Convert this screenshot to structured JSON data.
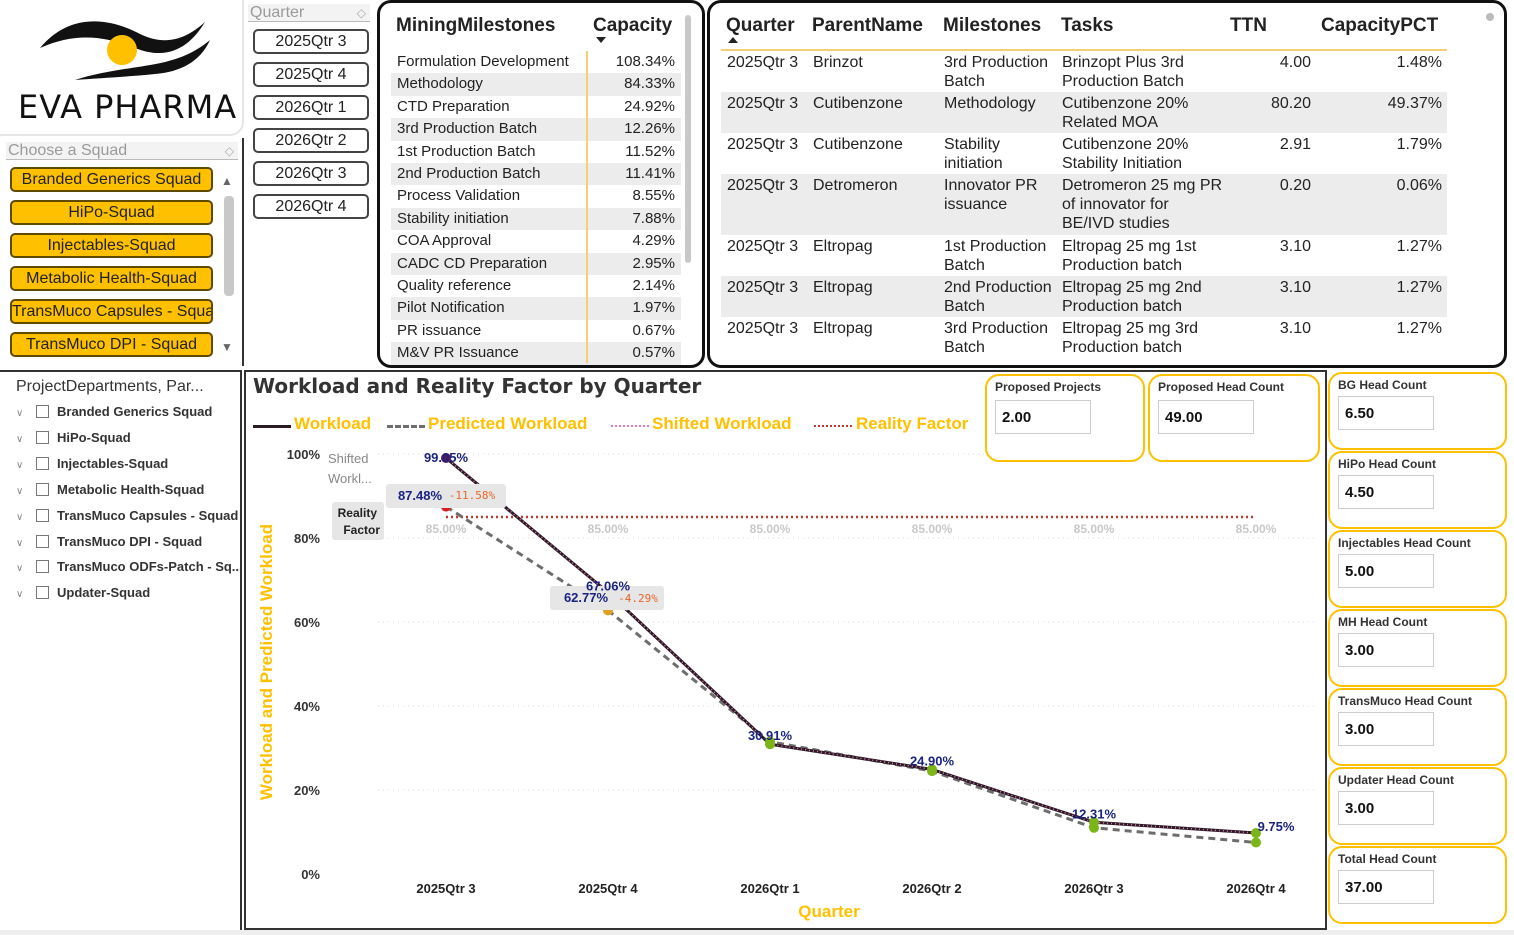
{
  "logo": {
    "text": "EVA PHARMA"
  },
  "squad_slicer": {
    "header": "Choose a Squad",
    "items": [
      "Branded Generics Squad",
      "HiPo-Squad",
      "Injectables-Squad",
      "Metabolic Health-Squad",
      "TransMuco Capsules - Squad",
      "TransMuco DPI - Squad"
    ]
  },
  "quarter_slicer": {
    "header": "Quarter",
    "items": [
      "2025Qtr 3",
      "2025Qtr 4",
      "2026Qtr 1",
      "2026Qtr 2",
      "2026Qtr 3",
      "2026Qtr 4"
    ]
  },
  "milestones_table": {
    "headers": [
      "MiningMilestones",
      "Capacity"
    ],
    "rows": [
      [
        "Formulation Development",
        "108.34%"
      ],
      [
        "Methodology",
        "84.33%"
      ],
      [
        "CTD Preparation",
        "24.92%"
      ],
      [
        "3rd Production Batch",
        "12.26%"
      ],
      [
        "1st Production Batch",
        "11.52%"
      ],
      [
        "2nd Production Batch",
        "11.41%"
      ],
      [
        "Process Validation",
        "8.55%"
      ],
      [
        "Stability initiation",
        "7.88%"
      ],
      [
        "COA Approval",
        "4.29%"
      ],
      [
        "CADC CD Preparation",
        "2.95%"
      ],
      [
        "Quality reference",
        "2.14%"
      ],
      [
        "Pilot Notification",
        "1.97%"
      ],
      [
        "PR issuance",
        "0.67%"
      ],
      [
        "M&V PR Issuance",
        "0.57%"
      ]
    ]
  },
  "tasks_table": {
    "headers": [
      "Quarter",
      "ParentName",
      "Milestones",
      "Tasks",
      "TTN",
      "CapacityPCT"
    ],
    "rows": [
      {
        "quarter": "2025Qtr 3",
        "parent": "Brinzot",
        "milestone": [
          "3rd Production",
          "Batch"
        ],
        "task": [
          "Brinzopt Plus 3rd",
          "Production Batch"
        ],
        "ttn": "4.00",
        "pct": "1.48%"
      },
      {
        "quarter": "2025Qtr 3",
        "parent": "Cutibenzone",
        "milestone": [
          "Methodology"
        ],
        "task": [
          "Cutibenzone 20%",
          "Related MOA"
        ],
        "ttn": "80.20",
        "pct": "49.37%"
      },
      {
        "quarter": "2025Qtr 3",
        "parent": "Cutibenzone",
        "milestone": [
          "Stability",
          "initiation"
        ],
        "task": [
          "Cutibenzone 20%",
          "Stability Initiation"
        ],
        "ttn": "2.91",
        "pct": "1.79%"
      },
      {
        "quarter": "2025Qtr 3",
        "parent": "Detromeron",
        "milestone": [
          "Innovator PR",
          "issuance"
        ],
        "task": [
          "Detromeron 25 mg PR",
          "of innovator for",
          "BE/IVD studies"
        ],
        "ttn": "0.20",
        "pct": "0.06%"
      },
      {
        "quarter": "2025Qtr 3",
        "parent": "Eltropag",
        "milestone": [
          "1st Production",
          "Batch"
        ],
        "task": [
          "Eltropag 25 mg 1st",
          "Production batch"
        ],
        "ttn": "3.10",
        "pct": "1.27%"
      },
      {
        "quarter": "2025Qtr 3",
        "parent": "Eltropag",
        "milestone": [
          "2nd Production",
          "Batch"
        ],
        "task": [
          "Eltropag 25 mg 2nd",
          "Production batch"
        ],
        "ttn": "3.10",
        "pct": "1.27%"
      },
      {
        "quarter": "2025Qtr 3",
        "parent": "Eltropag",
        "milestone": [
          "3rd Production",
          "Batch"
        ],
        "task": [
          "Eltropag 25 mg 3rd",
          "Production batch"
        ],
        "ttn": "3.10",
        "pct": "1.27%"
      }
    ]
  },
  "dept_tree": {
    "title": "ProjectDepartments, Par...",
    "items": [
      "Branded Generics Squad",
      "HiPo-Squad",
      "Injectables-Squad",
      "Metabolic Health-Squad",
      "TransMuco Capsules - Squad",
      "TransMuco DPI - Squad",
      "TransMuco ODFs-Patch - Sq...",
      "Updater-Squad"
    ]
  },
  "chart_data": {
    "type": "line",
    "title": "Workload and Reality Factor by Quarter",
    "xlabel": "Quarter",
    "ylabel": "Workload and Predicted Workload",
    "categories": [
      "2025Qtr 3",
      "2025Qtr 4",
      "2026Qtr 1",
      "2026Qtr 2",
      "2026Qtr 3",
      "2026Qtr 4"
    ],
    "y_ticks": [
      "0%",
      "20%",
      "40%",
      "60%",
      "80%",
      "100%"
    ],
    "ylim": [
      0,
      100
    ],
    "legend_position": "top",
    "series": [
      {
        "name": "Workload",
        "values": [
          99.05,
          67.06,
          30.91,
          24.9,
          12.31,
          9.75
        ],
        "labels": [
          "99.05%",
          "67.06%",
          "30.91%",
          "24.90%",
          "12.31%",
          "9.75%"
        ],
        "color": "#2a1a24",
        "style": "solid"
      },
      {
        "name": "Predicted Workload",
        "values": [
          87.48,
          62.77,
          31.5,
          24.5,
          11.0,
          7.5
        ],
        "labels": [
          "87.48%",
          "62.77%"
        ],
        "color": "#6d6d6d",
        "style": "dashed"
      },
      {
        "name": "Shifted Workload",
        "values": [
          99.05,
          67.06,
          30.91,
          24.9,
          12.31,
          9.75
        ],
        "color": "#e879b8",
        "style": "dotted"
      },
      {
        "name": "Reality Factor",
        "values": [
          85.0,
          85.0,
          85.0,
          85.0,
          85.0,
          85.0
        ],
        "labels": [
          "85.00%",
          "85.00%",
          "85.00%",
          "85.00%",
          "85.00%",
          "85.00%"
        ],
        "color": "#c0392b",
        "style": "dotted"
      }
    ],
    "deltas": [
      "-11.58%",
      "-4.29%"
    ],
    "end_labels": {
      "shifted": "Shifted Workl...",
      "reality_line1": "Reality",
      "reality_line2": "Factor"
    },
    "grid": true
  },
  "kpis": {
    "proposed_projects": {
      "label": "Proposed Projects",
      "value": "2.00"
    },
    "proposed_head_count": {
      "label": "Proposed Head Count",
      "value": "49.00"
    },
    "side": [
      {
        "label": "BG Head Count",
        "value": "6.50"
      },
      {
        "label": "HiPo Head Count",
        "value": "4.50"
      },
      {
        "label": "Injectables Head Count",
        "value": "5.00"
      },
      {
        "label": "MH Head Count",
        "value": "3.00"
      },
      {
        "label": "TransMuco Head Count",
        "value": "3.00"
      },
      {
        "label": "Updater Head Count",
        "value": "3.00"
      },
      {
        "label": "Total Head Count",
        "value": "37.00"
      }
    ]
  },
  "colors": {
    "accent": "#ffc000",
    "workload": "#2a1a24",
    "predicted": "#6d6d6d",
    "shifted": "#e879b8",
    "reality": "#c0392b",
    "point_green": "#7cb518",
    "point_orange": "#e0a020",
    "label_blue": "#1a237e"
  }
}
